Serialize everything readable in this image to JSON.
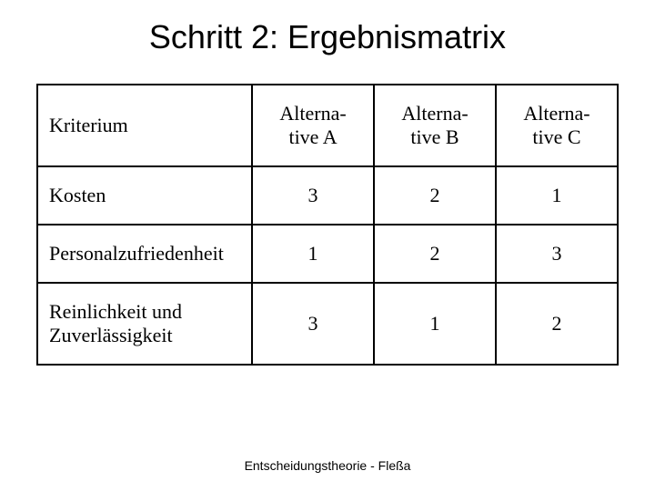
{
  "slide": {
    "title": "Schritt 2: Ergebnismatrix",
    "footer": "Entscheidungstheorie - Fleßa"
  },
  "table": {
    "type": "table",
    "background_color": "#ffffff",
    "border_color": "#000000",
    "border_width": 2,
    "header_font": "Times New Roman",
    "header_fontsize": 22,
    "cell_font": "Times New Roman",
    "cell_fontsize": 22,
    "columns": [
      {
        "key": "criterion",
        "label": "Kriterium",
        "align": "left",
        "width_pct": 37
      },
      {
        "key": "altA",
        "label_line1": "Alterna-",
        "label_line2": "tive A",
        "align": "center",
        "width_pct": 21
      },
      {
        "key": "altB",
        "label_line1": "Alterna-",
        "label_line2": "tive B",
        "align": "center",
        "width_pct": 21
      },
      {
        "key": "altC",
        "label_line1": "Alterna-",
        "label_line2": "tive C",
        "align": "center",
        "width_pct": 21
      }
    ],
    "rows": [
      {
        "criterion": "Kosten",
        "altA": "3",
        "altB": "2",
        "altC": "1"
      },
      {
        "criterion": "Personalzufriedenheit",
        "altA": "1",
        "altB": "2",
        "altC": "3"
      },
      {
        "criterion_line1": "Reinlichkeit und",
        "criterion_line2": " Zuverlässigkeit",
        "altA": "3",
        "altB": "1",
        "altC": "2"
      }
    ]
  }
}
